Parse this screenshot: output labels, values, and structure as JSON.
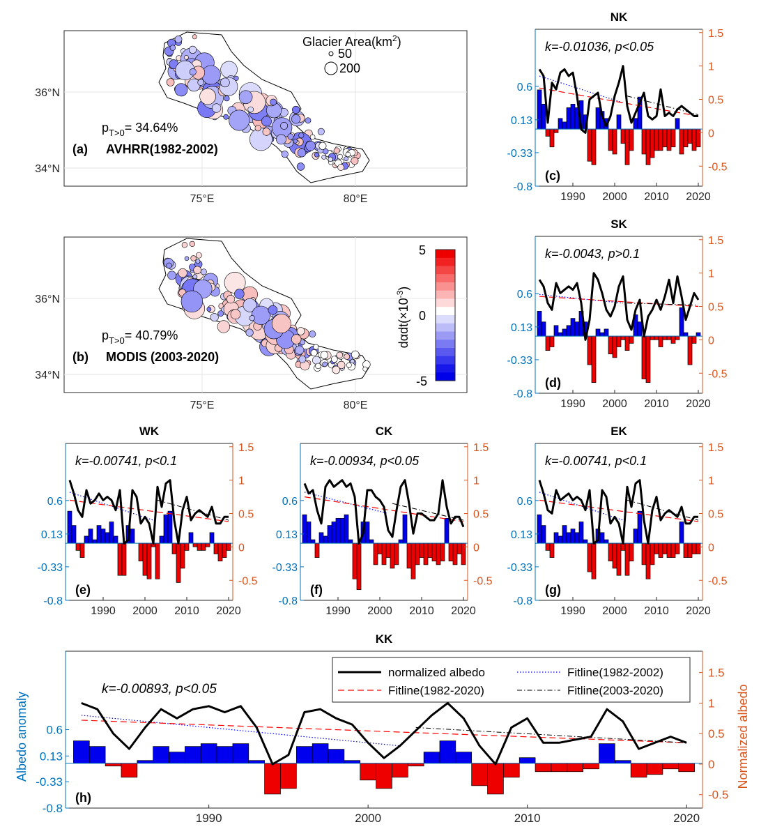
{
  "colors": {
    "positive_bar": "#0000ee",
    "negative_bar": "#ee0000",
    "left_axis": "#0072bd",
    "right_axis": "#d95319",
    "albedo_line": "#000000",
    "fit_1982_2002": "#0000ff",
    "fit_1982_2020": "#ff0000",
    "fit_2003_2020": "#000000"
  },
  "maps": [
    {
      "panel": "(a)",
      "label": "(a)",
      "title": "AVHRR(1982-2002)",
      "p_text": "p",
      "p_sub": "T>0",
      "p_value": "= 34.64%",
      "lat_ticks": [
        "36°N",
        "34°N"
      ],
      "lon_ticks": [
        "75°E",
        "80°E"
      ],
      "legend": {
        "title": "Glacier Area(km",
        "title_sup": "2",
        "title_close": ")",
        "sizes": [
          "50",
          "200"
        ]
      }
    },
    {
      "panel": "(b)",
      "label": "(b)",
      "title": "MODIS (2003-2020)",
      "p_text": "p",
      "p_sub": "T>0",
      "p_value": "= 40.79%",
      "lat_ticks": [
        "36°N",
        "34°N"
      ],
      "lon_ticks": [
        "75°E",
        "80°E"
      ],
      "colorbar": {
        "ticks": [
          "5",
          "0",
          "-5"
        ],
        "label": "dαdt(×10",
        "label_sup": "-3",
        "label_close": ")",
        "colors": [
          "#ee0000",
          "#f22222",
          "#f54646",
          "#f86b6b",
          "#fa9191",
          "#fcb5b5",
          "#fed9d9",
          "#ffffff",
          "#dcdcfc",
          "#bcbcf9",
          "#9b9bf6",
          "#7a7af3",
          "#5959f0",
          "#3838ed",
          "#1717ea",
          "#0000e8"
        ]
      }
    }
  ],
  "chart_data": [
    {
      "panel": "(c)",
      "title": "NK",
      "type": "bar+line",
      "annotation": "k=-0.01036, p<0.05",
      "xlim": [
        1981,
        2021
      ],
      "x_ticks": [
        "1990",
        "2000",
        "2010",
        "2020"
      ],
      "left_axis": {
        "ylim": [
          -0.8,
          1.4
        ],
        "ticks": [
          "0.6",
          "0.13",
          "-0.33",
          "-0.8"
        ]
      },
      "right_axis": {
        "ylim": [
          -0.8,
          1.55
        ],
        "ticks": [
          "1.5",
          "1",
          "0.5",
          "0",
          "-0.5"
        ]
      },
      "years": [
        1982,
        1983,
        1984,
        1985,
        1986,
        1987,
        1988,
        1989,
        1990,
        1991,
        1992,
        1993,
        1994,
        1995,
        1996,
        1997,
        1998,
        1999,
        2000,
        2001,
        2002,
        2003,
        2004,
        2005,
        2006,
        2007,
        2008,
        2009,
        2010,
        2011,
        2012,
        2013,
        2014,
        2015,
        2016,
        2017,
        2018,
        2019,
        2020
      ],
      "anomaly": [
        0.55,
        0.35,
        -0.1,
        -0.25,
        -0.05,
        0.15,
        0.1,
        0.3,
        0.35,
        0.3,
        0.4,
        0.2,
        -0.45,
        -0.5,
        0.3,
        0.25,
        0.15,
        -0.3,
        -0.35,
        0.2,
        -0.2,
        -0.5,
        -0.3,
        0.15,
        0.45,
        -0.35,
        -0.5,
        -0.4,
        -0.3,
        -0.3,
        -0.25,
        -0.3,
        -0.25,
        0.15,
        -0.35,
        -0.25,
        -0.2,
        -0.3,
        -0.25
      ],
      "normalized_albedo": [
        0.95,
        0.85,
        0.15,
        0.75,
        0.65,
        0.9,
        0.95,
        0.85,
        0.9,
        0.55,
        0.05,
        0.0,
        0.5,
        0.55,
        0.6,
        0.25,
        0.1,
        0.25,
        0.55,
        0.75,
        1.0,
        0.4,
        0.15,
        0.3,
        0.45,
        0.6,
        0.25,
        0.2,
        0.25,
        0.65,
        0.25,
        0.3,
        0.25,
        0.35,
        0.4,
        0.35,
        0.3,
        0.25,
        0.25
      ],
      "fit_1982_2002": [
        0.85,
        0.45
      ],
      "fit_1982_2020": [
        0.67,
        0.25
      ],
      "fit_2003_2020": [
        0.55,
        0.27
      ]
    },
    {
      "panel": "(d)",
      "title": "SK",
      "type": "bar+line",
      "annotation": "k=-0.0043, p>0.1",
      "xlim": [
        1981,
        2021
      ],
      "x_ticks": [
        "1990",
        "2000",
        "2010",
        "2020"
      ],
      "left_axis": {
        "ylim": [
          -0.8,
          1.4
        ],
        "ticks": [
          "0.6",
          "0.13",
          "-0.33",
          "-0.8"
        ]
      },
      "right_axis": {
        "ylim": [
          -0.8,
          1.55
        ],
        "ticks": [
          "1.5",
          "1",
          "0.5",
          "0",
          "-0.5"
        ]
      },
      "years": [
        1982,
        1983,
        1984,
        1985,
        1986,
        1987,
        1988,
        1989,
        1990,
        1991,
        1992,
        1993,
        1994,
        1995,
        1996,
        1997,
        1998,
        1999,
        2000,
        2001,
        2002,
        2003,
        2004,
        2005,
        2006,
        2007,
        2008,
        2009,
        2010,
        2011,
        2012,
        2013,
        2014,
        2015,
        2016,
        2017,
        2018,
        2019,
        2020
      ],
      "anomaly": [
        0.35,
        0.2,
        -0.2,
        -0.15,
        0.15,
        0.05,
        0.1,
        0.15,
        0.25,
        0.2,
        0.35,
        0.2,
        -0.4,
        -0.65,
        0.1,
        0.05,
        0.1,
        -0.25,
        -0.3,
        -0.15,
        -0.05,
        -0.2,
        -0.1,
        0.3,
        0.2,
        -0.6,
        -0.65,
        -0.05,
        -0.05,
        -0.15,
        -0.05,
        -0.05,
        -0.1,
        -0.05,
        0.4,
        0.05,
        -0.4,
        -0.1,
        0.05
      ],
      "normalized_albedo": [
        0.9,
        0.8,
        0.55,
        0.45,
        0.85,
        0.7,
        0.75,
        0.8,
        0.75,
        0.85,
        0.55,
        0.0,
        0.3,
        1.0,
        0.9,
        0.7,
        0.45,
        0.35,
        0.5,
        0.8,
        0.95,
        0.3,
        0.15,
        0.45,
        0.6,
        0.05,
        0.35,
        0.45,
        0.6,
        0.45,
        0.65,
        0.9,
        0.55,
        0.95,
        0.65,
        0.3,
        0.5,
        0.7,
        0.6
      ],
      "fit_1982_2002": [
        0.68,
        0.55
      ],
      "fit_1982_2020": [
        0.65,
        0.5
      ],
      "fit_2003_2020": [
        0.55,
        0.52
      ]
    },
    {
      "panel": "(e)",
      "title": "WK",
      "type": "bar+line",
      "annotation": "k=-0.00741, p<0.1",
      "xlim": [
        1981,
        2021
      ],
      "x_ticks": [
        "1990",
        "2000",
        "2010",
        "2020"
      ],
      "left_axis": {
        "ylim": [
          -0.8,
          1.4
        ],
        "ticks": [
          "0.6",
          "0.13",
          "-0.33",
          "-0.8"
        ]
      },
      "right_axis": {
        "ylim": [
          -0.8,
          1.55
        ],
        "ticks": [
          "1.5",
          "1",
          "0.5",
          "0",
          "-0.5"
        ]
      },
      "years": [
        1982,
        1983,
        1984,
        1985,
        1986,
        1987,
        1988,
        1989,
        1990,
        1991,
        1992,
        1993,
        1994,
        1995,
        1996,
        1997,
        1998,
        1999,
        2000,
        2001,
        2002,
        2003,
        2004,
        2005,
        2006,
        2007,
        2008,
        2009,
        2010,
        2011,
        2012,
        2013,
        2014,
        2015,
        2016,
        2017,
        2018,
        2019,
        2020
      ],
      "anomaly": [
        0.45,
        0.25,
        -0.1,
        -0.2,
        0.1,
        0.2,
        0.05,
        0.25,
        0.2,
        0.15,
        0.3,
        0.1,
        -0.45,
        -0.45,
        0.25,
        0.2,
        0.0,
        -0.25,
        -0.45,
        -0.5,
        -0.05,
        -0.5,
        0.1,
        0.4,
        0.45,
        -0.15,
        -0.55,
        -0.35,
        -0.1,
        0.15,
        -0.05,
        -0.1,
        -0.1,
        -0.05,
        0.15,
        -0.15,
        -0.25,
        -0.2,
        -0.1
      ],
      "normalized_albedo": [
        1.0,
        0.8,
        0.55,
        0.45,
        0.85,
        0.65,
        0.7,
        0.8,
        0.7,
        0.75,
        0.7,
        0.55,
        0.85,
        0.05,
        0.1,
        0.85,
        0.75,
        0.35,
        0.45,
        0.35,
        0.05,
        0.9,
        0.6,
        0.95,
        1.0,
        0.4,
        0.05,
        0.55,
        0.75,
        0.4,
        0.5,
        0.55,
        0.5,
        0.45,
        0.6,
        0.35,
        0.35,
        0.45,
        0.45
      ],
      "fit_1982_2002": [
        0.82,
        0.4
      ],
      "fit_1982_2020": [
        0.7,
        0.38
      ],
      "fit_2003_2020": [
        0.7,
        0.4
      ]
    },
    {
      "panel": "(f)",
      "title": "CK",
      "type": "bar+line",
      "annotation": "k=-0.00934, p<0.05",
      "xlim": [
        1981,
        2021
      ],
      "x_ticks": [
        "1990",
        "2000",
        "2010",
        "2020"
      ],
      "left_axis": {
        "ylim": [
          -0.8,
          1.4
        ],
        "ticks": [
          "0.6",
          "0.13",
          "-0.33",
          "-0.8"
        ]
      },
      "right_axis": {
        "ylim": [
          -0.8,
          1.55
        ],
        "ticks": [
          "1.5",
          "1",
          "0.5",
          "0",
          "-0.5"
        ]
      },
      "years": [
        1982,
        1983,
        1984,
        1985,
        1986,
        1987,
        1988,
        1989,
        1990,
        1991,
        1992,
        1993,
        1994,
        1995,
        1996,
        1997,
        1998,
        1999,
        2000,
        2001,
        2002,
        2003,
        2004,
        2005,
        2006,
        2007,
        2008,
        2009,
        2010,
        2011,
        2012,
        2013,
        2014,
        2015,
        2016,
        2017,
        2018,
        2019,
        2020
      ],
      "anomaly": [
        0.4,
        0.3,
        0.05,
        -0.2,
        0.15,
        0.1,
        0.25,
        0.3,
        0.35,
        0.35,
        0.4,
        0.05,
        -0.5,
        -0.65,
        0.3,
        0.3,
        0.05,
        -0.3,
        -0.15,
        -0.3,
        -0.2,
        -0.35,
        -0.3,
        0.05,
        0.4,
        -0.35,
        -0.5,
        -0.3,
        -0.2,
        -0.3,
        -0.2,
        -0.25,
        -0.3,
        -0.25,
        0.35,
        -0.25,
        -0.3,
        -0.15,
        -0.3
      ],
      "normalized_albedo": [
        0.95,
        0.8,
        0.85,
        0.55,
        0.35,
        0.9,
        1.0,
        0.9,
        0.95,
        1.0,
        0.9,
        0.95,
        0.75,
        0.05,
        0.2,
        0.85,
        0.85,
        0.75,
        0.7,
        0.6,
        0.25,
        0.15,
        0.55,
        0.9,
        1.0,
        0.65,
        0.2,
        0.5,
        0.5,
        0.45,
        0.4,
        0.4,
        0.5,
        1.0,
        0.6,
        0.35,
        0.45,
        0.45,
        0.3
      ],
      "fit_1982_2002": [
        0.82,
        0.5
      ],
      "fit_1982_2020": [
        0.75,
        0.38
      ],
      "fit_2003_2020": [
        0.65,
        0.4
      ]
    },
    {
      "panel": "(g)",
      "title": "EK",
      "type": "bar+line",
      "annotation": "k=-0.00741, p<0.1",
      "xlim": [
        1981,
        2021
      ],
      "x_ticks": [
        "1990",
        "2000",
        "2010",
        "2020"
      ],
      "left_axis": {
        "ylim": [
          -0.8,
          1.4
        ],
        "ticks": [
          "0.6",
          "0.13",
          "-0.33",
          "-0.8"
        ]
      },
      "right_axis": {
        "ylim": [
          -0.8,
          1.55
        ],
        "ticks": [
          "1.5",
          "1",
          "0.5",
          "0",
          "-0.5"
        ]
      },
      "years": [
        1982,
        1983,
        1984,
        1985,
        1986,
        1987,
        1988,
        1989,
        1990,
        1991,
        1992,
        1993,
        1994,
        1995,
        1996,
        1997,
        1998,
        1999,
        2000,
        2001,
        2002,
        2003,
        2004,
        2005,
        2006,
        2007,
        2008,
        2009,
        2010,
        2011,
        2012,
        2013,
        2014,
        2015,
        2016,
        2017,
        2018,
        2019,
        2020
      ],
      "anomaly": [
        0.4,
        0.25,
        -0.1,
        -0.2,
        0.15,
        0.1,
        0.25,
        0.15,
        0.2,
        0.15,
        0.3,
        0.05,
        -0.4,
        -0.5,
        0.2,
        0.15,
        0.05,
        -0.25,
        -0.35,
        -0.45,
        -0.1,
        -0.45,
        -0.25,
        0.2,
        0.45,
        -0.3,
        -0.5,
        -0.3,
        -0.15,
        -0.2,
        -0.15,
        -0.2,
        -0.2,
        -0.15,
        0.3,
        -0.2,
        -0.2,
        -0.15,
        -0.15
      ],
      "normalized_albedo": [
        1.0,
        0.8,
        0.55,
        0.5,
        0.85,
        0.7,
        0.75,
        0.8,
        0.7,
        0.75,
        0.7,
        0.55,
        0.85,
        0.05,
        0.1,
        0.85,
        0.75,
        0.35,
        0.45,
        0.35,
        0.05,
        0.9,
        0.6,
        0.95,
        1.0,
        0.4,
        0.05,
        0.55,
        0.75,
        0.4,
        0.5,
        0.55,
        0.5,
        0.45,
        0.6,
        0.35,
        0.35,
        0.45,
        0.45
      ],
      "fit_1982_2002": [
        0.82,
        0.4
      ],
      "fit_1982_2020": [
        0.7,
        0.38
      ],
      "fit_2003_2020": [
        0.7,
        0.4
      ]
    },
    {
      "panel": "(h)",
      "title": "KK",
      "type": "bar+line",
      "annotation": "k=-0.00893, p<0.05",
      "xlim": [
        1981,
        2021
      ],
      "x_ticks": [
        "1990",
        "2000",
        "2010",
        "2020"
      ],
      "ylabel_left": "Albedo anomaly",
      "ylabel_right": "Normalized albedo",
      "left_axis": {
        "ylim": [
          -0.8,
          2.0
        ],
        "ticks": [
          "0.6",
          "0.13",
          "-0.33",
          "-0.8"
        ]
      },
      "right_axis": {
        "ylim": [
          -0.72,
          1.85
        ],
        "ticks": [
          "1.5",
          "1",
          "0.5",
          "0",
          "-0.5"
        ]
      },
      "legend": [
        "normalized albedo",
        "Fitline(1982-2002)",
        "Fitline(1982-2020)",
        "Fitline(2003-2020)"
      ],
      "legend_position": "top-right",
      "years": [
        1982,
        1983,
        1984,
        1985,
        1986,
        1987,
        1988,
        1989,
        1990,
        1991,
        1992,
        1993,
        1994,
        1995,
        1996,
        1997,
        1998,
        1999,
        2000,
        2001,
        2002,
        2003,
        2004,
        2005,
        2006,
        2007,
        2008,
        2009,
        2010,
        2011,
        2012,
        2013,
        2014,
        2015,
        2016,
        2017,
        2018,
        2019,
        2020
      ],
      "anomaly": [
        0.4,
        0.3,
        -0.05,
        -0.25,
        0.05,
        0.3,
        0.2,
        0.3,
        0.35,
        0.3,
        0.35,
        0.05,
        -0.55,
        -0.45,
        0.3,
        0.35,
        0.25,
        0.05,
        -0.3,
        -0.45,
        -0.25,
        -0.05,
        0.2,
        0.4,
        0.2,
        -0.4,
        -0.55,
        -0.25,
        0.1,
        -0.15,
        -0.15,
        -0.15,
        -0.1,
        0.35,
        0.05,
        -0.25,
        -0.2,
        -0.1,
        -0.15
      ],
      "normalized_albedo": [
        1.0,
        0.9,
        0.5,
        0.25,
        0.6,
        0.9,
        0.75,
        0.9,
        0.95,
        0.85,
        0.95,
        0.6,
        0.0,
        0.15,
        0.85,
        0.9,
        0.75,
        0.65,
        0.35,
        0.1,
        0.3,
        0.55,
        0.8,
        1.0,
        0.75,
        0.3,
        0.0,
        0.6,
        0.75,
        0.35,
        0.35,
        0.4,
        0.45,
        0.9,
        0.7,
        0.25,
        0.35,
        0.45,
        0.35
      ],
      "fit_1982_2002": [
        0.8,
        0.3
      ],
      "fit_1982_2020": [
        0.72,
        0.35
      ],
      "fit_2003_2020": [
        0.6,
        0.35
      ]
    }
  ]
}
